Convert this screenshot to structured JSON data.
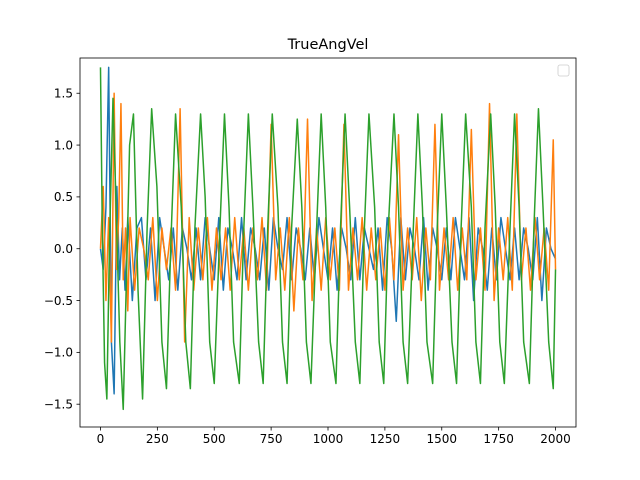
{
  "chart_data": {
    "type": "line",
    "title": "TrueAngVel",
    "xlabel": "",
    "ylabel": "",
    "xlim": [
      -90,
      2090
    ],
    "ylim": [
      -1.72,
      1.84
    ],
    "xticks": [
      0,
      250,
      500,
      750,
      1000,
      1250,
      1500,
      1750,
      2000
    ],
    "yticks": [
      -1.5,
      -1.0,
      -0.5,
      0.0,
      0.5,
      1.0,
      1.5
    ],
    "xtick_labels": [
      "0",
      "250",
      "500",
      "750",
      "1000",
      "1250",
      "1500",
      "1750",
      "2000"
    ],
    "ytick_labels": [
      "−1.5",
      "−1.0",
      "−0.5",
      "0.0",
      "0.5",
      "1.0",
      "1.5"
    ],
    "grid": false,
    "legend": {
      "placement": "upper-right",
      "entries": []
    },
    "series": [
      {
        "color": "#1f77b4",
        "description": "oscillating ~[-0.6, 0.4] with large excursions early",
        "x": [
          0,
          12,
          24,
          36,
          48,
          60,
          72,
          84,
          96,
          108,
          120,
          140,
          160,
          180,
          200,
          220,
          240,
          260,
          280,
          300,
          320,
          340,
          360,
          380,
          400,
          420,
          440,
          460,
          480,
          500,
          520,
          540,
          560,
          580,
          600,
          620,
          640,
          660,
          680,
          700,
          720,
          740,
          760,
          780,
          800,
          820,
          840,
          860,
          880,
          900,
          920,
          940,
          960,
          980,
          1000,
          1020,
          1040,
          1060,
          1080,
          1100,
          1120,
          1140,
          1160,
          1180,
          1200,
          1220,
          1240,
          1260,
          1280,
          1300,
          1320,
          1340,
          1360,
          1380,
          1400,
          1420,
          1440,
          1460,
          1480,
          1500,
          1520,
          1540,
          1560,
          1580,
          1600,
          1620,
          1640,
          1660,
          1680,
          1700,
          1720,
          1740,
          1760,
          1780,
          1800,
          1820,
          1840,
          1860,
          1880,
          1900,
          1920,
          1940,
          1960,
          1980,
          2000
        ],
        "y": [
          0.0,
          -0.2,
          0.4,
          1.75,
          -0.9,
          -1.4,
          0.6,
          -0.3,
          0.2,
          -0.4,
          0.3,
          -0.5,
          0.2,
          0.3,
          -0.3,
          0.2,
          -0.5,
          0.3,
          0.0,
          -0.3,
          0.2,
          -0.4,
          0.2,
          0.0,
          -0.3,
          0.2,
          -0.3,
          0.3,
          0.0,
          -0.3,
          0.3,
          -0.4,
          0.2,
          0.0,
          -0.3,
          0.3,
          -0.3,
          0.2,
          0.0,
          -0.3,
          0.2,
          -0.4,
          0.3,
          0.0,
          -0.2,
          0.3,
          -0.3,
          0.2,
          0.0,
          -0.3,
          0.2,
          -0.3,
          0.3,
          0.0,
          -0.3,
          0.2,
          -0.4,
          0.2,
          0.0,
          -0.3,
          0.3,
          -0.3,
          0.2,
          0.0,
          -0.2,
          0.2,
          -0.4,
          0.3,
          0.0,
          -0.7,
          0.3,
          -0.3,
          0.2,
          0.0,
          -0.3,
          0.3,
          -0.4,
          0.2,
          0.0,
          -0.3,
          0.2,
          -0.3,
          0.3,
          0.0,
          -0.3,
          0.3,
          -0.5,
          0.2,
          0.0,
          -0.4,
          0.2,
          -0.3,
          0.3,
          0.0,
          -0.3,
          0.2,
          -0.3,
          0.2,
          0.0,
          -0.3,
          0.3,
          -0.5,
          0.2,
          0.0,
          -0.1
        ]
      },
      {
        "color": "#ff7f0e",
        "description": "oscillating ~[-0.5, 0.3] with spikes to ~1.4",
        "x": [
          0,
          12,
          24,
          36,
          48,
          60,
          70,
          80,
          90,
          100,
          110,
          120,
          130,
          150,
          170,
          190,
          210,
          230,
          250,
          270,
          290,
          310,
          330,
          350,
          370,
          390,
          410,
          430,
          450,
          470,
          490,
          510,
          530,
          550,
          570,
          590,
          610,
          630,
          650,
          670,
          690,
          710,
          730,
          750,
          770,
          790,
          810,
          830,
          850,
          870,
          890,
          910,
          930,
          950,
          970,
          990,
          1010,
          1030,
          1050,
          1070,
          1090,
          1110,
          1130,
          1150,
          1170,
          1190,
          1210,
          1230,
          1250,
          1270,
          1290,
          1310,
          1330,
          1350,
          1370,
          1390,
          1410,
          1430,
          1450,
          1470,
          1490,
          1510,
          1530,
          1550,
          1570,
          1590,
          1610,
          1630,
          1650,
          1670,
          1690,
          1710,
          1730,
          1750,
          1770,
          1790,
          1810,
          1830,
          1850,
          1870,
          1890,
          1910,
          1930,
          1950,
          1970,
          1990,
          2000
        ],
        "y": [
          0.0,
          0.6,
          -0.5,
          0.3,
          -0.9,
          1.5,
          -0.2,
          0.3,
          1.4,
          -0.3,
          0.2,
          -0.6,
          0.3,
          -0.4,
          0.2,
          0.0,
          -0.3,
          0.3,
          -0.5,
          0.2,
          -0.2,
          0.2,
          -0.4,
          1.35,
          -0.9,
          0.3,
          -0.4,
          0.2,
          -0.3,
          0.3,
          -0.4,
          0.2,
          -0.3,
          0.2,
          -0.4,
          0.3,
          -0.3,
          0.2,
          -0.4,
          0.2,
          -0.3,
          0.3,
          -0.4,
          1.2,
          -0.3,
          0.2,
          -0.4,
          0.3,
          -0.6,
          0.2,
          -0.3,
          1.25,
          -0.5,
          0.2,
          -0.4,
          0.3,
          -0.3,
          0.2,
          -0.4,
          1.2,
          -0.4,
          0.2,
          -0.3,
          0.3,
          -0.4,
          0.2,
          -0.3,
          0.2,
          -0.4,
          0.3,
          -0.3,
          1.1,
          -0.4,
          0.2,
          -0.3,
          0.3,
          -0.5,
          0.2,
          -0.3,
          1.2,
          -0.4,
          0.2,
          -0.3,
          0.3,
          -0.4,
          0.2,
          -0.3,
          1.15,
          -0.3,
          0.2,
          -0.4,
          1.4,
          -0.5,
          0.2,
          -0.3,
          0.3,
          -0.4,
          1.3,
          -0.3,
          0.2,
          -0.4,
          0.3,
          -0.3,
          0.2,
          -0.4,
          1.05,
          -0.2
        ]
      },
      {
        "color": "#2ca02c",
        "description": "large periodic oscillation roughly ±1.3, period ~85",
        "x": [
          0,
          8,
          18,
          28,
          40,
          55,
          70,
          85,
          100,
          115,
          128,
          145,
          165,
          185,
          205,
          225,
          248,
          270,
          290,
          310,
          330,
          355,
          375,
          395,
          415,
          440,
          460,
          480,
          500,
          525,
          545,
          565,
          585,
          610,
          630,
          650,
          670,
          695,
          715,
          735,
          755,
          780,
          800,
          820,
          840,
          865,
          885,
          905,
          925,
          950,
          970,
          990,
          1010,
          1035,
          1055,
          1075,
          1095,
          1120,
          1140,
          1160,
          1180,
          1205,
          1225,
          1245,
          1265,
          1290,
          1310,
          1330,
          1350,
          1375,
          1395,
          1415,
          1435,
          1460,
          1480,
          1500,
          1520,
          1545,
          1565,
          1585,
          1605,
          1630,
          1650,
          1670,
          1690,
          1715,
          1735,
          1755,
          1775,
          1800,
          1820,
          1840,
          1860,
          1885,
          1905,
          1925,
          1945,
          1970,
          1990,
          2000
        ],
        "y": [
          1.75,
          0.2,
          -1.1,
          -1.45,
          0.1,
          1.45,
          0.3,
          -0.9,
          -1.55,
          -0.2,
          1.0,
          1.3,
          -0.4,
          -1.45,
          0.2,
          1.35,
          0.6,
          -0.9,
          -1.35,
          0.1,
          1.3,
          0.4,
          -0.9,
          -1.35,
          0.2,
          1.3,
          0.5,
          -0.9,
          -1.3,
          0.2,
          1.3,
          0.4,
          -0.9,
          -1.3,
          0.2,
          1.3,
          0.4,
          -0.9,
          -1.3,
          0.2,
          1.3,
          0.4,
          -0.9,
          -1.3,
          0.2,
          1.25,
          0.4,
          -0.9,
          -1.3,
          0.2,
          1.3,
          0.4,
          -0.9,
          -1.3,
          0.2,
          1.3,
          0.4,
          -0.9,
          -1.3,
          0.2,
          1.3,
          0.4,
          -0.9,
          -1.3,
          0.2,
          1.3,
          0.4,
          -0.9,
          -1.3,
          0.2,
          1.3,
          0.4,
          -0.9,
          -1.3,
          0.2,
          1.3,
          0.4,
          -0.9,
          -1.3,
          0.2,
          1.3,
          0.4,
          -0.9,
          -1.3,
          0.2,
          1.3,
          0.4,
          -0.9,
          -1.3,
          0.2,
          1.3,
          0.4,
          -0.9,
          -1.3,
          0.2,
          1.35,
          0.4,
          -0.9,
          -1.35,
          -0.2
        ]
      }
    ]
  }
}
